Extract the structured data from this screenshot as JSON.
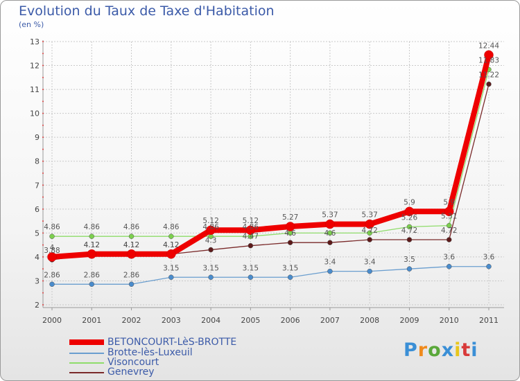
{
  "chart_data": {
    "type": "line",
    "title": "Evolution du Taux de Taxe d'Habitation",
    "ylabel": "(en %)",
    "xlabel": "",
    "categories": [
      "2000",
      "2001",
      "2002",
      "2003",
      "2004",
      "2005",
      "2006",
      "2007",
      "2008",
      "2009",
      "2010",
      "2011"
    ],
    "ylim": [
      2,
      13
    ],
    "yticks": [
      2,
      3,
      4,
      5,
      6,
      7,
      8,
      9,
      10,
      11,
      12,
      13
    ],
    "grid": true,
    "legend_position": "bottom-left",
    "series": [
      {
        "name": "Brotte-lès-Luxeuil",
        "color": "#6a9ecf",
        "marker": "#4a8ccc",
        "values": [
          2.86,
          2.86,
          2.86,
          3.15,
          3.15,
          3.15,
          3.15,
          3.4,
          3.4,
          3.5,
          3.6,
          3.6
        ],
        "labels": [
          "2.86",
          "2.86",
          "2.86",
          "3.15",
          "3.15",
          "3.15",
          "3.15",
          "3.4",
          "3.4",
          "3.5",
          "3.6",
          "3.6"
        ]
      },
      {
        "name": "Genevrey",
        "color": "#7a2a2a",
        "marker": "#5c1a1a",
        "values": [
          3.88,
          4.12,
          4.12,
          4.12,
          4.3,
          4.47,
          4.6,
          4.6,
          4.72,
          4.72,
          4.72,
          11.22
        ],
        "labels": [
          "3.88",
          "4.12",
          "4.12",
          "4.12",
          "4.3",
          "4.47",
          "4.6",
          "4.6",
          "4.72",
          "4.72",
          "4.72",
          "11.22"
        ]
      },
      {
        "name": "Visoncourt",
        "color": "#8edc6a",
        "marker": "#7ccf4e",
        "values": [
          4.86,
          4.86,
          4.86,
          4.86,
          4.86,
          4.86,
          5.0,
          5.0,
          5.0,
          5.26,
          5.31,
          11.83
        ],
        "labels": [
          "4.86",
          "4.86",
          "4.86",
          "4.86",
          "4.86",
          "4.86",
          "",
          "",
          "",
          "5.26",
          "5.31",
          "11.83"
        ]
      },
      {
        "name": "BETONCOURT-LèS-BROTTE",
        "color": "#ee0000",
        "marker": "#ee0000",
        "values": [
          4.0,
          4.12,
          4.12,
          4.12,
          5.12,
          5.12,
          5.27,
          5.37,
          5.37,
          5.9,
          5.9,
          12.44
        ],
        "labels": [
          "4",
          "4.12",
          "4.12",
          "4.12",
          "5.12",
          "5.12",
          "5.27",
          "5.37",
          "5.37",
          "5.9",
          "5.9",
          "12.44"
        ]
      }
    ]
  },
  "legend": [
    {
      "label": "BETONCOURT-LèS-BROTTE",
      "color": "#ee0000"
    },
    {
      "label": "Brotte-lès-Luxeuil",
      "color": "#6a9ecf"
    },
    {
      "label": "Visoncourt",
      "color": "#8edc6a"
    },
    {
      "label": "Genevrey",
      "color": "#7a2a2a"
    }
  ],
  "logo": {
    "text": "Proxiti",
    "colors": [
      "#3a8fd6",
      "#f08a1c",
      "#5aa83a",
      "#3a8fd6",
      "#e8c61c",
      "#d83a3a",
      "#3a8fd6"
    ]
  }
}
